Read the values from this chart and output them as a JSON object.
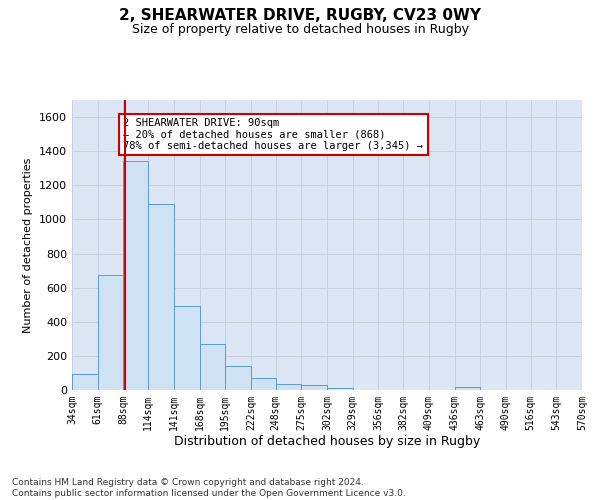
{
  "title": "2, SHEARWATER DRIVE, RUGBY, CV23 0WY",
  "subtitle": "Size of property relative to detached houses in Rugby",
  "xlabel": "Distribution of detached houses by size in Rugby",
  "ylabel": "Number of detached properties",
  "bin_edges": [
    34,
    61,
    88,
    114,
    141,
    168,
    195,
    222,
    248,
    275,
    302,
    329,
    356,
    382,
    409,
    436,
    463,
    490,
    516,
    543,
    570
  ],
  "bar_values": [
    95,
    675,
    1340,
    1090,
    495,
    270,
    140,
    70,
    35,
    30,
    10,
    0,
    0,
    0,
    0,
    20,
    0,
    0,
    0,
    0
  ],
  "bar_color": "#cfe2f3",
  "bar_edge_color": "#5b9bd5",
  "property_line_x": 90,
  "property_line_color": "#cc0000",
  "annotation_text": "2 SHEARWATER DRIVE: 90sqm\n← 20% of detached houses are smaller (868)\n78% of semi-detached houses are larger (3,345) →",
  "annotation_box_color": "#ffffff",
  "annotation_box_edge_color": "#cc0000",
  "ylim": [
    0,
    1700
  ],
  "yticks": [
    0,
    200,
    400,
    600,
    800,
    1000,
    1200,
    1400,
    1600
  ],
  "grid_color": "#c8d0e0",
  "background_color": "#dce6f5",
  "footer_line1": "Contains HM Land Registry data © Crown copyright and database right 2024.",
  "footer_line2": "Contains public sector information licensed under the Open Government Licence v3.0."
}
